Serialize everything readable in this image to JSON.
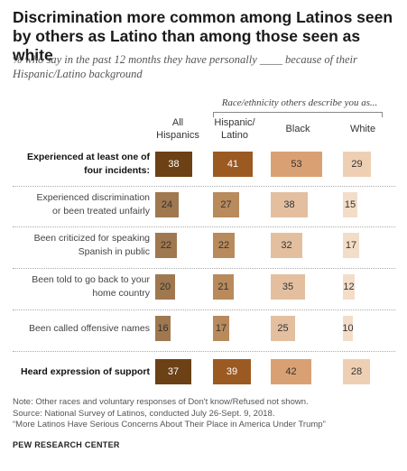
{
  "title": "Discrimination more common among Latinos seen by others as Latino than among those seen as white",
  "subtitle": "% who say in the past 12 months they have personally ____ because of their Hispanic/Latino background",
  "group_header": "Race/ethnicity others describe you as...",
  "notes": [
    "Note: Other races and voluntary responses of Don't know/Refused not shown.",
    "Source: National Survey of Latinos, conducted July 26-Sept. 9, 2018.",
    "“More Latinos Have Serious Concerns About Their Place in America Under Trump”"
  ],
  "footer": "PEW RESEARCH CENTER",
  "colors": {
    "highlight_rows": [
      "#6b4115",
      "#9c5a23",
      "#d9a173",
      "#efcfb3"
    ],
    "regular_rows": [
      "#a0784f",
      "#b88a5c",
      "#e3bfa0",
      "#f3ddc9"
    ]
  },
  "chart_data": {
    "type": "bar",
    "columns": [
      {
        "name": "All Hispanics",
        "lines": [
          "All",
          "Hispanics"
        ]
      },
      {
        "name": "Hispanic/ Latino",
        "lines": [
          "Hispanic/",
          "Latino"
        ]
      },
      {
        "name": "Black",
        "lines": [
          "Black"
        ]
      },
      {
        "name": "White",
        "lines": [
          "White"
        ]
      }
    ],
    "categories": [
      "Experienced at least one of four incidents:",
      "Experienced discrimination or been treated unfairly",
      "Been criticized for speaking Spanish in public",
      "Been told to go back to your home country",
      "Been called offensive names",
      "Heard expression of support"
    ],
    "category_lines": [
      [
        "Experienced at least one of",
        "four incidents:"
      ],
      [
        "Experienced discrimination",
        "or been treated unfairly"
      ],
      [
        "Been criticized for speaking",
        "Spanish in public"
      ],
      [
        "Been told to go back to your",
        "home country"
      ],
      [
        "Been called offensive names"
      ],
      [
        "Heard expression of support"
      ]
    ],
    "highlight_categories": [
      0,
      5
    ],
    "series": [
      {
        "name": "All Hispanics",
        "values": [
          38,
          24,
          22,
          20,
          16,
          37
        ]
      },
      {
        "name": "Hispanic/ Latino",
        "values": [
          41,
          27,
          22,
          21,
          17,
          39
        ]
      },
      {
        "name": "Black",
        "values": [
          53,
          38,
          32,
          35,
          25,
          42
        ]
      },
      {
        "name": "White",
        "values": [
          29,
          15,
          17,
          12,
          10,
          28
        ]
      }
    ]
  }
}
